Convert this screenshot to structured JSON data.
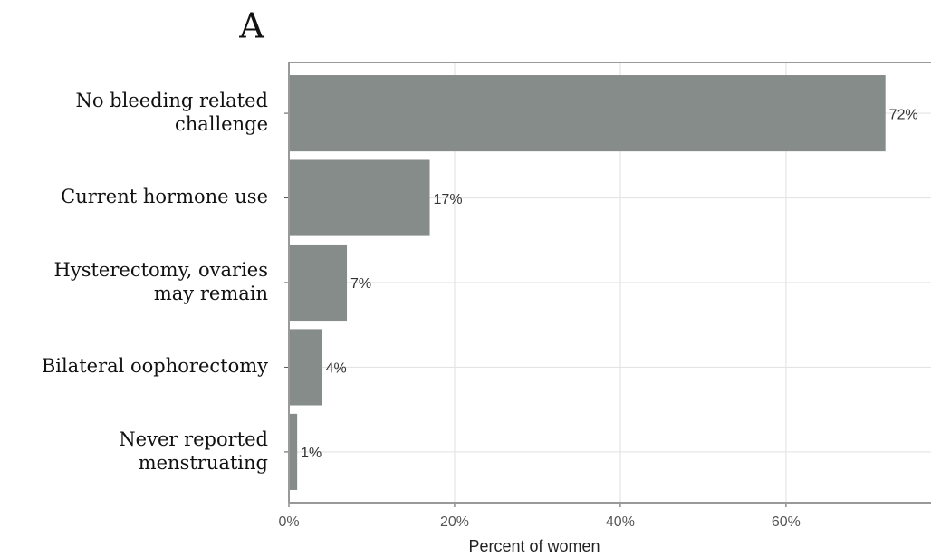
{
  "panel_label": "A",
  "chart_data": {
    "type": "hbar",
    "categories": [
      "No bleeding related\nchallenge",
      "Current hormone use",
      "Hysterectomy, ovaries\nmay remain",
      "Bilateral oophorectomy",
      "Never reported\nmenstruating"
    ],
    "values": [
      72,
      17,
      7,
      4,
      1
    ],
    "value_labels": [
      "72%",
      "17%",
      "7%",
      "4%",
      "1%"
    ],
    "color": "#858c8a",
    "xlabel": "Percent of women",
    "xlim": [
      0,
      77.5
    ],
    "xticks": [
      {
        "value": 0,
        "label": "0%"
      },
      {
        "value": 20,
        "label": "20%"
      },
      {
        "value": 40,
        "label": "40%"
      },
      {
        "value": 60,
        "label": "60%"
      }
    ],
    "grid": true
  }
}
